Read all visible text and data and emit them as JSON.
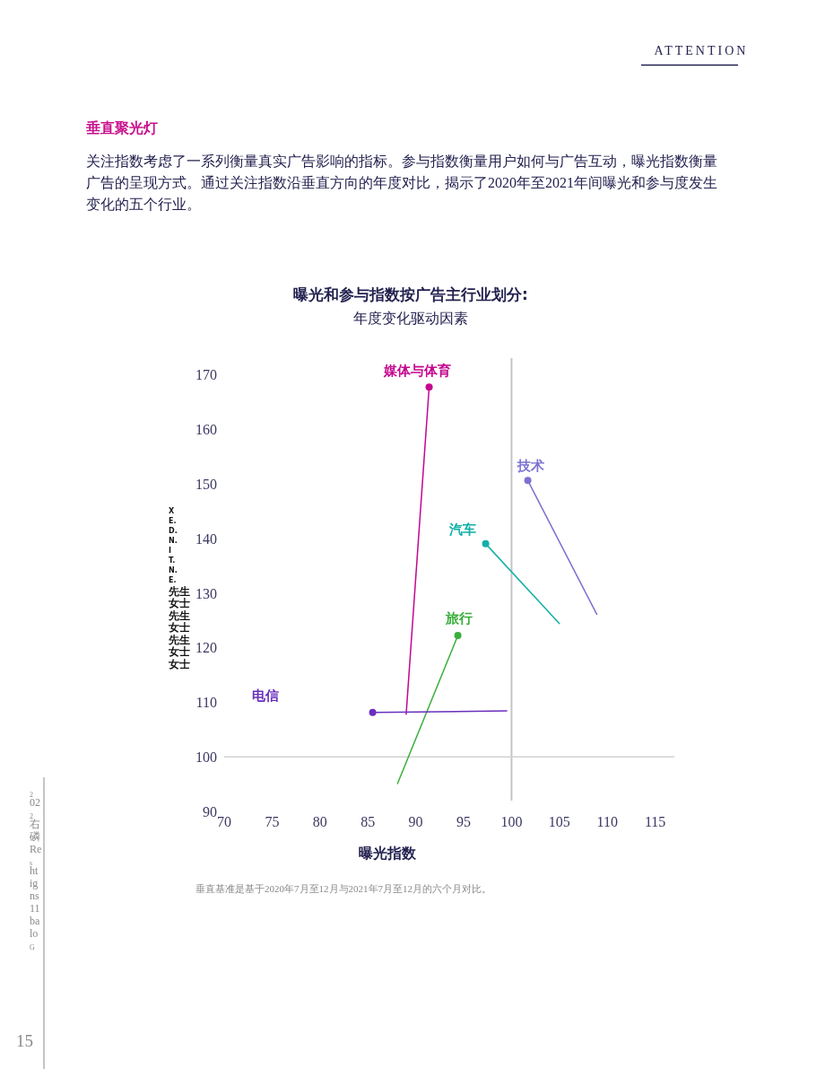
{
  "chart_data": {
    "type": "line",
    "title": "曝光和参与指数按广告主行业划分:",
    "subtitle": "年度变化驱动因素",
    "xlabel": "曝光指数",
    "ylabel": "X E. D. N. I T. N. E.先生女士先生女士先生女士女士",
    "xlim": [
      70,
      117
    ],
    "ylim": [
      90,
      173
    ],
    "xticks": [
      70,
      75,
      80,
      85,
      90,
      95,
      100,
      105,
      110,
      115
    ],
    "yticks": [
      90,
      100,
      110,
      120,
      130,
      140,
      150,
      160,
      170
    ],
    "legend": false,
    "ref_lines": [
      {
        "axis": "x",
        "value": 100,
        "color": "#c4c4c4"
      },
      {
        "axis": "y",
        "value": 100,
        "color": "#d2d2d2"
      }
    ],
    "series": [
      {
        "name": "媒体与体育",
        "color": "#c3078f",
        "x": [
          91.4,
          89.0
        ],
        "values": [
          167.7,
          107.8
        ],
        "marker": "none"
      },
      {
        "type": "scatter",
        "color": "#c3078f",
        "x": [
          91.4
        ],
        "values": [
          167.7
        ],
        "marker": "circle"
      },
      {
        "name": "技术",
        "color": "#7b72d0",
        "x": [
          101.7,
          108.9
        ],
        "values": [
          150.6,
          126.1
        ],
        "marker": "none"
      },
      {
        "type": "scatter",
        "color": "#7b72d0",
        "x": [
          101.7
        ],
        "values": [
          150.6
        ],
        "marker": "circle"
      },
      {
        "name": "汽车",
        "color": "#12b0a6",
        "x": [
          97.3,
          105.0
        ],
        "values": [
          139.0,
          124.4
        ],
        "marker": "none"
      },
      {
        "type": "scatter",
        "color": "#12b0a6",
        "x": [
          97.3
        ],
        "values": [
          139.0
        ],
        "marker": "circle"
      },
      {
        "name": "旅行",
        "color": "#3aaf3a",
        "x": [
          94.4,
          88.1
        ],
        "values": [
          122.2,
          95.1
        ],
        "marker": "none"
      },
      {
        "type": "scatter",
        "color": "#3aaf3a",
        "x": [
          94.4
        ],
        "values": [
          122.2
        ],
        "marker": "circle"
      },
      {
        "name": "电信",
        "color": "#6a2fbd",
        "x": [
          85.5,
          99.5
        ],
        "values": [
          108.1,
          108.4
        ],
        "marker": "none"
      },
      {
        "type": "scatter",
        "color": "#6a2fbd",
        "x": [
          85.5
        ],
        "values": [
          108.1
        ],
        "marker": "circle"
      }
    ],
    "annotations": [
      "ATTENTION",
      "垂直聚光灯",
      "关注指数考虑了一系列衡量真实广告影响的指标。参与指数衡量用户如何与广告互动，曝光指数衡量广告的呈现方式。通过关注指数沿垂直方向的年度对比，揭示了2020年至2021年间曝光和参与度发生变化的五个行业。",
      "垂直基准是基于2020年7月至12月与2021年7月至12月的六个月对比。",
      "15",
      "2 02 2右磷Re s ht ig ns 11 ba lo G"
    ]
  }
}
